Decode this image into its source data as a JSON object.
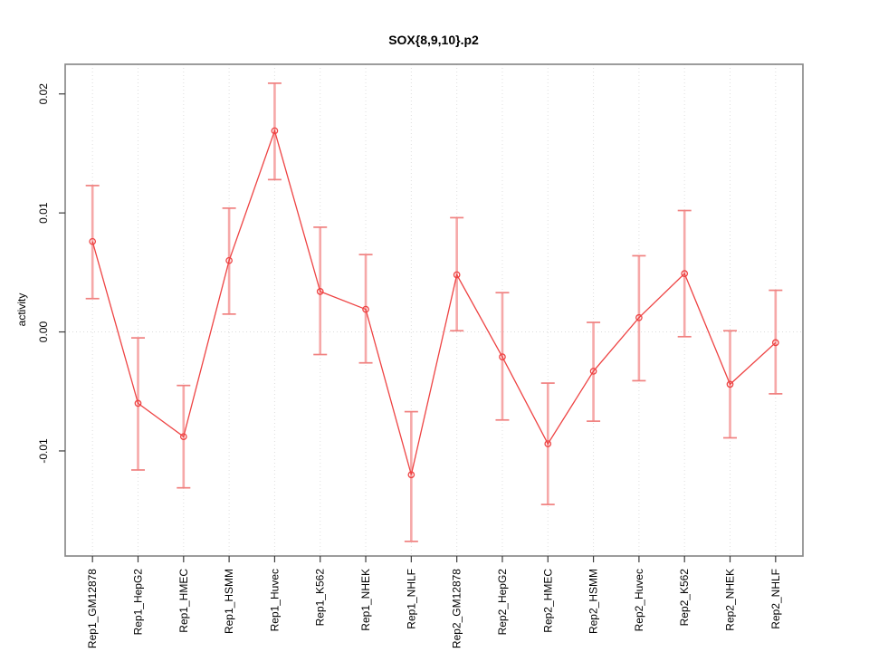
{
  "title": "SOX{8,9,10}.p2",
  "chart_data": {
    "type": "line",
    "title": "SOX{8,9,10}.p2",
    "xlabel": "",
    "ylabel": "activity",
    "legend": "none",
    "grid": "dotted vertical line at each category; dotted horizontal line at y=0",
    "categories": [
      "Rep1_GM12878",
      "Rep1_HepG2",
      "Rep1_HMEC",
      "Rep1_HSMM",
      "Rep1_Huvec",
      "Rep1_K562",
      "Rep1_NHEK",
      "Rep1_NHLF",
      "Rep2_GM12878",
      "Rep2_HepG2",
      "Rep2_HMEC",
      "Rep2_HSMM",
      "Rep2_Huvec",
      "Rep2_K562",
      "Rep2_NHEK",
      "Rep2_NHLF"
    ],
    "series": [
      {
        "name": "activity",
        "marker": "open-circle",
        "values": [
          0.0076,
          -0.006,
          -0.0088,
          0.006,
          0.0169,
          0.0034,
          0.0019,
          -0.012,
          0.0048,
          -0.0021,
          -0.0094,
          -0.0033,
          0.0012,
          0.0049,
          -0.0044,
          -0.0009
        ],
        "err_high": [
          0.0123,
          -0.0005,
          -0.0045,
          0.0104,
          0.0209,
          0.0088,
          0.0065,
          -0.0067,
          0.0096,
          0.0033,
          -0.0043,
          0.0008,
          0.0064,
          0.0102,
          0.0001,
          0.0035
        ],
        "err_low": [
          0.0028,
          -0.0116,
          -0.0131,
          0.0015,
          0.0128,
          -0.0019,
          -0.0026,
          -0.0176,
          0.0001,
          -0.0074,
          -0.0145,
          -0.0075,
          -0.0041,
          -0.0004,
          -0.0089,
          -0.0052
        ]
      }
    ],
    "yticks": [
      -0.01,
      0.0,
      0.01,
      0.02
    ],
    "ylim": [
      -0.01883,
      0.02249
    ],
    "colors": {
      "line": "#ee4343",
      "marker": "#ee4343",
      "error_bar": "#f6a8a8",
      "error_cap": "#f0807f",
      "gridline": "#dedede",
      "zero_line": "#dcdcdc",
      "box": "#8a8a8a",
      "tick": "#3c3c3c",
      "text": "#000000",
      "background": "#ffffff"
    }
  }
}
